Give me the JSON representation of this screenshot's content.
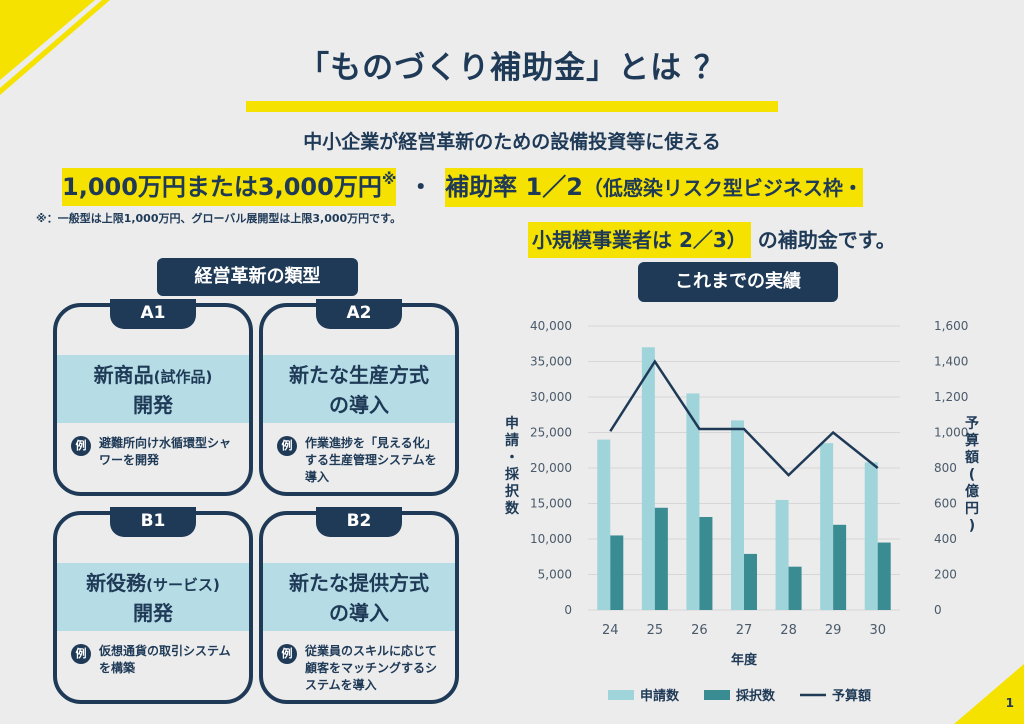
{
  "title": "「ものづくり補助金」とは ？",
  "subtitle": "中小企業が経営革新のための設備投資等に使える",
  "headline": {
    "amount": "1,000万円または3,000万円",
    "amount_mark": "※",
    "dot": "・",
    "rate": "補助率 1／2",
    "paren_part": "（低感染リスク型ビジネス枠・",
    "small_business": "小規模事業者は 2／3）",
    "tail": "の補助金です。"
  },
  "note": "※：一般型は上限1,000万円、グローバル展開型は上限3,000万円です。",
  "types_label": "経営革新の類型",
  "results_label": "これまでの実績",
  "example_mark": "例",
  "cards": [
    {
      "tab": "A1",
      "title_line1": "新商品",
      "title_small": "(試作品)",
      "title_line2": "開発",
      "example": "避難所向け水循環型シャワーを開発"
    },
    {
      "tab": "A2",
      "title_line1": "新たな生産方式",
      "title_small": "",
      "title_line2": "の導入",
      "example": "作業進捗を「見える化」する生産管理システムを導入"
    },
    {
      "tab": "B1",
      "title_line1": "新役務",
      "title_small": "(サービス)",
      "title_line2": "開発",
      "example": "仮想通貨の取引システムを構築"
    },
    {
      "tab": "B2",
      "title_line1": "新たな提供方式",
      "title_small": "",
      "title_line2": "の導入",
      "example": "従業員のスキルに応じて顧客をマッチングするシステムを導入"
    }
  ],
  "page_number": "1",
  "colors": {
    "navy": "#1f3a57",
    "yellow": "#f5e200",
    "light_blue": "#b6dde5",
    "applied": "#9fd4db",
    "adopted": "#3a8c93"
  },
  "chart_data": {
    "type": "bar",
    "categories": [
      "24",
      "25",
      "26",
      "27",
      "28",
      "29",
      "30"
    ],
    "series": [
      {
        "name": "申請数",
        "kind": "bar",
        "axis": "left",
        "values": [
          24000,
          37000,
          30500,
          26700,
          15500,
          23500,
          20800
        ]
      },
      {
        "name": "採択数",
        "kind": "bar",
        "axis": "left",
        "values": [
          10500,
          14400,
          13100,
          7900,
          6100,
          12000,
          9500
        ]
      },
      {
        "name": "予算額",
        "kind": "line",
        "axis": "right",
        "values": [
          1007,
          1400,
          1020,
          1020,
          760,
          1000,
          800
        ]
      }
    ],
    "xlabel": "年度",
    "ylabel": "申請・採択数",
    "y2label": "予算額(億円)",
    "ylim": [
      0,
      40000
    ],
    "y2lim": [
      0,
      1600
    ],
    "yticks": [
      "0",
      "5,000",
      "10,000",
      "15,000",
      "20,000",
      "25,000",
      "30,000",
      "35,000",
      "40,000"
    ],
    "y2ticks": [
      "0",
      "200",
      "400",
      "600",
      "800",
      "1,000",
      "1,200",
      "1,400",
      "1,600"
    ],
    "grid": true,
    "legend": "bottom"
  }
}
